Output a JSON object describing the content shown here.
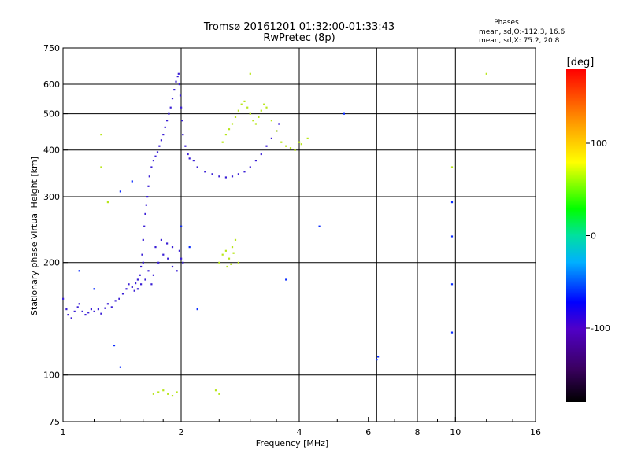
{
  "header": {
    "title": "Tromsø 20161201 01:32:00-01:33:43",
    "subtitle": "RwPretec (8p)"
  },
  "stats": {
    "heading": "Phases",
    "line1": "mean, sd,O:-112.3, 16.6",
    "line2": "mean, sd,X:  75.2, 20.8"
  },
  "chart_data": {
    "type": "scatter",
    "xlabel": "Frequency [MHz]",
    "ylabel": "Stationary phase Virtual Height [km]",
    "x_scale": "log",
    "y_scale": "log",
    "xlim": [
      1,
      16
    ],
    "ylim": [
      75,
      750
    ],
    "x_ticks": [
      1,
      2,
      4,
      6,
      8,
      10,
      16
    ],
    "x_tick_labels": [
      "1",
      "2",
      "4",
      "6",
      "8",
      "10",
      "16"
    ],
    "x_grid": [
      2,
      4,
      6.3,
      8,
      10
    ],
    "y_ticks": [
      75,
      100,
      200,
      300,
      400,
      500,
      600,
      750
    ],
    "y_tick_labels": [
      "75",
      "100",
      "200",
      "300",
      "400",
      "500",
      "600",
      "750"
    ],
    "y_grid": [
      100,
      200,
      300,
      400,
      500,
      600
    ],
    "grid": true,
    "colorbar": {
      "label": "[deg]",
      "range": [
        -180,
        180
      ],
      "ticks": [
        100,
        0,
        -100
      ],
      "tick_labels": [
        "100",
        "0",
        "-100"
      ]
    },
    "series": [
      {
        "points": [
          [
            1.0,
            160
          ],
          [
            1.02,
            150
          ],
          [
            1.03,
            145
          ],
          [
            1.05,
            142
          ],
          [
            1.07,
            148
          ],
          [
            1.09,
            152
          ],
          [
            1.1,
            155
          ],
          [
            1.12,
            148
          ],
          [
            1.14,
            145
          ],
          [
            1.16,
            147
          ],
          [
            1.18,
            150
          ],
          [
            1.2,
            148
          ],
          [
            1.23,
            150
          ],
          [
            1.25,
            146
          ],
          [
            1.28,
            151
          ],
          [
            1.3,
            155
          ],
          [
            1.33,
            152
          ],
          [
            1.36,
            158
          ],
          [
            1.39,
            160
          ],
          [
            1.42,
            165
          ],
          [
            1.45,
            170
          ],
          [
            1.47,
            175
          ],
          [
            1.5,
            172
          ],
          [
            1.53,
            176
          ],
          [
            1.55,
            180
          ],
          [
            1.57,
            185
          ],
          [
            1.58,
            195
          ],
          [
            1.59,
            210
          ],
          [
            1.6,
            230
          ],
          [
            1.61,
            250
          ],
          [
            1.62,
            270
          ],
          [
            1.63,
            285
          ],
          [
            1.64,
            300
          ],
          [
            1.65,
            320
          ],
          [
            1.66,
            340
          ],
          [
            1.68,
            360
          ],
          [
            1.7,
            375
          ],
          [
            1.72,
            385
          ],
          [
            1.74,
            395
          ],
          [
            1.76,
            410
          ],
          [
            1.78,
            425
          ],
          [
            1.8,
            440
          ],
          [
            1.82,
            460
          ],
          [
            1.84,
            480
          ],
          [
            1.86,
            500
          ],
          [
            1.88,
            520
          ],
          [
            1.9,
            550
          ],
          [
            1.92,
            580
          ],
          [
            1.94,
            610
          ],
          [
            1.96,
            630
          ],
          [
            1.97,
            640
          ],
          [
            1.98,
            600
          ],
          [
            1.99,
            560
          ],
          [
            2.0,
            520
          ],
          [
            2.01,
            480
          ],
          [
            2.02,
            440
          ],
          [
            2.05,
            410
          ],
          [
            2.08,
            390
          ],
          [
            2.1,
            380
          ],
          [
            2.15,
            375
          ],
          [
            2.2,
            360
          ],
          [
            2.3,
            350
          ],
          [
            2.4,
            345
          ],
          [
            2.5,
            340
          ],
          [
            2.6,
            338
          ],
          [
            2.7,
            340
          ],
          [
            2.8,
            345
          ],
          [
            2.9,
            350
          ],
          [
            3.0,
            360
          ],
          [
            3.1,
            375
          ],
          [
            3.2,
            390
          ],
          [
            3.3,
            410
          ],
          [
            3.4,
            430
          ],
          [
            3.5,
            450
          ],
          [
            3.55,
            470
          ],
          [
            1.6,
            200
          ],
          [
            1.65,
            190
          ],
          [
            1.7,
            185
          ],
          [
            1.75,
            200
          ],
          [
            1.8,
            210
          ],
          [
            1.85,
            205
          ],
          [
            1.9,
            195
          ],
          [
            1.95,
            190
          ],
          [
            1.62,
            180
          ],
          [
            1.68,
            175
          ],
          [
            1.72,
            220
          ],
          [
            1.78,
            230
          ],
          [
            1.84,
            225
          ],
          [
            1.9,
            220
          ],
          [
            1.98,
            215
          ],
          [
            2.0,
            205
          ],
          [
            2.02,
            200
          ],
          [
            1.55,
            170
          ],
          [
            1.58,
            175
          ],
          [
            1.52,
            168
          ]
        ]
      },
      {
        "points": [
          [
            2.55,
            420
          ],
          [
            2.6,
            440
          ],
          [
            2.65,
            455
          ],
          [
            2.7,
            470
          ],
          [
            2.75,
            490
          ],
          [
            2.8,
            510
          ],
          [
            2.85,
            530
          ],
          [
            2.9,
            540
          ],
          [
            2.95,
            520
          ],
          [
            3.0,
            500
          ],
          [
            3.05,
            480
          ],
          [
            3.1,
            470
          ],
          [
            3.15,
            490
          ],
          [
            3.2,
            510
          ],
          [
            3.25,
            530
          ],
          [
            3.3,
            520
          ],
          [
            3.4,
            480
          ],
          [
            3.5,
            450
          ],
          [
            3.6,
            420
          ],
          [
            3.7,
            410
          ],
          [
            3.8,
            405
          ],
          [
            3.9,
            400
          ],
          [
            4.0,
            420
          ],
          [
            4.05,
            415
          ],
          [
            2.5,
            200
          ],
          [
            2.55,
            210
          ],
          [
            2.6,
            215
          ],
          [
            2.65,
            205
          ],
          [
            2.7,
            220
          ],
          [
            2.75,
            230
          ],
          [
            2.8,
            200
          ],
          [
            2.62,
            195
          ],
          [
            2.68,
            198
          ],
          [
            2.72,
            212
          ],
          [
            1.7,
            89
          ],
          [
            1.75,
            90
          ],
          [
            1.8,
            91
          ],
          [
            1.85,
            89
          ],
          [
            1.9,
            88
          ],
          [
            1.95,
            90
          ],
          [
            2.45,
            91
          ],
          [
            2.5,
            89
          ],
          [
            1.25,
            440
          ],
          [
            1.25,
            360
          ],
          [
            1.3,
            290
          ],
          [
            4.2,
            430
          ],
          [
            12.0,
            640
          ],
          [
            9.8,
            360
          ],
          [
            3.0,
            640
          ]
        ]
      },
      {
        "points": [
          [
            1.4,
            310
          ],
          [
            1.5,
            330
          ],
          [
            1.1,
            190
          ],
          [
            1.2,
            170
          ],
          [
            1.35,
            120
          ],
          [
            1.4,
            105
          ],
          [
            2.0,
            250
          ],
          [
            2.1,
            220
          ],
          [
            2.2,
            150
          ],
          [
            5.2,
            500
          ],
          [
            6.3,
            110
          ],
          [
            6.35,
            112
          ],
          [
            9.8,
            290
          ],
          [
            9.8,
            235
          ],
          [
            9.8,
            175
          ],
          [
            9.8,
            130
          ],
          [
            3.7,
            180
          ],
          [
            4.5,
            250
          ]
        ]
      }
    ]
  }
}
